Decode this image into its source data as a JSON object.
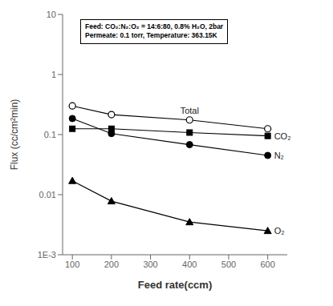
{
  "chart_data": {
    "type": "line",
    "xlabel": "Feed rate(ccm)",
    "ylabel": "Flux (cc/cm²min)",
    "x": [
      100,
      200,
      400,
      600
    ],
    "series": [
      {
        "name": "Total",
        "color": "black",
        "marker": "open_circle",
        "values": [
          0.3,
          0.215,
          0.175,
          0.125
        ]
      },
      {
        "name": "CO₂",
        "color": "black",
        "marker": "square",
        "values": [
          0.125,
          0.125,
          0.108,
          0.095
        ]
      },
      {
        "name": "N₂",
        "color": "black",
        "marker": "circle",
        "values": [
          0.185,
          0.104,
          0.068,
          0.045
        ]
      },
      {
        "name": "O₂",
        "color": "black",
        "marker": "triangle",
        "values": [
          0.017,
          0.0078,
          0.0035,
          0.0025
        ]
      }
    ],
    "xlim": [
      75,
      650
    ],
    "xticks": [
      100,
      200,
      300,
      400,
      500,
      600
    ],
    "ylim": [
      0.001,
      10
    ],
    "yticks": [
      {
        "value": 0.001,
        "label": "1E-3"
      },
      0.01,
      0.1,
      1,
      10
    ],
    "log": "y",
    "grid": false,
    "line_style": "solid",
    "annotation": [
      "Feed: CO₂:N₂:O₂ = 14:6:80, 0.8% H₂O, 2bar",
      "Permeate: 0.1 torr, Temperature: 363.15K"
    ]
  }
}
